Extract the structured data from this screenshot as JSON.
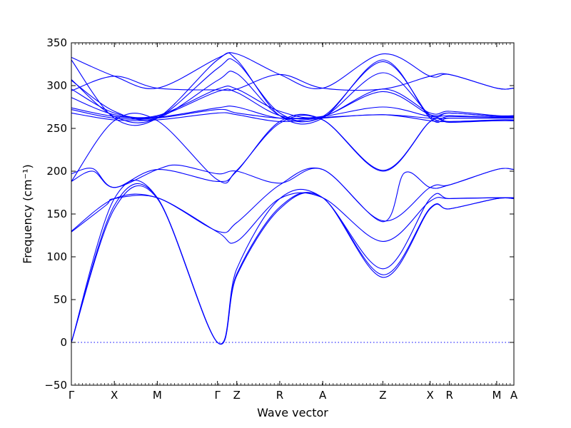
{
  "chart_data": {
    "type": "line",
    "xlabel": "Wave vector",
    "ylabel": "Frequency (cm⁻¹)",
    "ylim": [
      -50,
      350
    ],
    "yticks": [
      -50,
      0,
      50,
      100,
      150,
      200,
      250,
      300,
      350
    ],
    "xlim": [
      0,
      10.3
    ],
    "kpoints": [
      {
        "label": "Γ",
        "x": 0
      },
      {
        "label": "X",
        "x": 1.0
      },
      {
        "label": "M",
        "x": 2.0
      },
      {
        "label": "Γ",
        "x": 3.4
      },
      {
        "label": "Z",
        "x": 3.85
      },
      {
        "label": "R",
        "x": 4.85
      },
      {
        "label": "A",
        "x": 5.85
      },
      {
        "label": "Z",
        "x": 7.25
      },
      {
        "label": "X",
        "x": 8.35
      },
      {
        "label": "R",
        "x": 8.8
      },
      {
        "label": "M",
        "x": 9.9
      },
      {
        "label": "A",
        "x": 10.3
      }
    ],
    "zero_line": {
      "y": 0,
      "style": "dotted"
    },
    "grid": false,
    "line_color": "#0000ff",
    "series": [
      {
        "x": [
          0,
          1.0,
          2.0,
          3.4,
          3.85,
          4.85,
          5.85,
          7.25,
          8.35,
          8.8,
          9.9,
          10.3
        ],
        "values": [
          0,
          156,
          168,
          0,
          78,
          156,
          169,
          76,
          156,
          156,
          168,
          168
        ]
      },
      {
        "x": [
          0,
          1.0,
          2.0,
          3.4,
          3.85,
          4.85,
          5.85,
          7.25,
          8.35,
          8.8,
          9.9,
          10.3
        ],
        "values": [
          0,
          160,
          169,
          0,
          80,
          158,
          169,
          79,
          157,
          156,
          168,
          168
        ]
      },
      {
        "x": [
          0,
          1.0,
          2.0,
          3.4,
          3.85,
          4.85,
          5.85,
          7.25,
          8.35,
          8.8,
          9.9,
          10.3
        ],
        "values": [
          0,
          168,
          169,
          0,
          86,
          168,
          169,
          86,
          168,
          168,
          169,
          169
        ]
      },
      {
        "x": [
          0,
          0.8,
          1.0,
          2.0,
          3.4,
          3.85,
          4.85,
          5.85,
          7.25,
          8.35,
          8.8,
          9.9,
          10.3
        ],
        "values": [
          129,
          160,
          168,
          169,
          129,
          118,
          168,
          169,
          118,
          165,
          168,
          169,
          169
        ]
      },
      {
        "x": [
          0,
          1.0,
          2.0,
          3.4,
          3.85,
          4.85,
          5.85,
          7.25,
          8.35,
          8.8,
          9.9,
          10.3
        ],
        "values": [
          130,
          168,
          169,
          130,
          140,
          184,
          202,
          142,
          181,
          184,
          202,
          202
        ]
      },
      {
        "x": [
          0,
          0.5,
          1.0,
          2.0,
          2.5,
          3.4,
          3.85,
          4.85,
          5.85,
          7.25,
          7.75,
          8.35,
          8.8,
          9.9,
          10.3
        ],
        "values": [
          188,
          200,
          181,
          202,
          207,
          197,
          200,
          186,
          202,
          141,
          198,
          181,
          184,
          202,
          202
        ]
      },
      {
        "x": [
          0,
          0.5,
          1.0,
          2.0,
          3.4,
          3.85,
          4.85,
          5.85,
          7.25,
          8.35,
          8.8,
          9.9,
          10.3
        ],
        "values": [
          197,
          203,
          181,
          202,
          188,
          200,
          258,
          260,
          200,
          258,
          258,
          259,
          259
        ]
      },
      {
        "x": [
          0,
          1.0,
          2.0,
          3.4,
          3.85,
          4.85,
          5.85,
          7.25,
          8.35,
          8.8,
          9.9,
          10.3
        ],
        "values": [
          188,
          259,
          259,
          190,
          201,
          256,
          260,
          201,
          258,
          257,
          259,
          259
        ]
      },
      {
        "x": [
          0,
          1.0,
          2.0,
          3.4,
          3.85,
          4.85,
          5.85,
          7.25,
          8.35,
          8.8,
          9.9,
          10.3
        ],
        "values": [
          268,
          260,
          260,
          268,
          266,
          258,
          262,
          266,
          259,
          258,
          260,
          260
        ]
      },
      {
        "x": [
          0,
          1.0,
          2.0,
          3.4,
          3.85,
          4.85,
          5.85,
          7.25,
          8.35,
          8.8,
          9.9,
          10.3
        ],
        "values": [
          272,
          262,
          262,
          272,
          268,
          262,
          263,
          266,
          262,
          262,
          262,
          262
        ]
      },
      {
        "x": [
          0,
          1.0,
          2.0,
          3.4,
          3.85,
          4.85,
          5.85,
          7.25,
          8.35,
          8.8,
          9.9,
          10.3
        ],
        "values": [
          274,
          264,
          263,
          274,
          275,
          262,
          264,
          275,
          264,
          265,
          263,
          263
        ]
      },
      {
        "x": [
          0,
          1.0,
          2.0,
          3.4,
          3.85,
          4.85,
          5.85,
          7.25,
          8.35,
          8.8,
          9.9,
          10.3
        ],
        "values": [
          286,
          266,
          264,
          293,
          292,
          265,
          264,
          293,
          266,
          268,
          264,
          264
        ]
      },
      {
        "x": [
          0,
          1.0,
          2.0,
          3.4,
          3.85,
          4.85,
          5.85,
          7.25,
          8.35,
          8.8,
          9.9,
          10.3
        ],
        "values": [
          296,
          268,
          265,
          296,
          296,
          270,
          264,
          296,
          268,
          270,
          265,
          265
        ]
      },
      {
        "x": [
          0,
          1.0,
          2.0,
          3.4,
          3.85,
          4.85,
          5.85,
          7.25,
          8.35,
          8.8,
          9.9,
          10.3
        ],
        "values": [
          306,
          270,
          262,
          306,
          314,
          265,
          263,
          315,
          266,
          268,
          264,
          264
        ]
      },
      {
        "x": [
          0,
          1.0,
          2.0,
          3.4,
          3.85,
          4.85,
          5.85,
          7.25,
          8.35,
          8.8,
          9.9,
          10.3
        ],
        "values": [
          307,
          264,
          262,
          320,
          327,
          268,
          264,
          328,
          264,
          264,
          263,
          263
        ]
      },
      {
        "x": [
          0,
          1.0,
          2.0,
          3.4,
          3.85,
          4.85,
          5.85,
          7.25,
          8.35,
          8.8,
          9.9,
          10.3
        ],
        "values": [
          330,
          262,
          262,
          330,
          330,
          265,
          262,
          330,
          262,
          262,
          262,
          262
        ]
      },
      {
        "x": [
          0,
          1.0,
          2.0,
          3.4,
          3.85,
          4.85,
          5.85,
          7.25,
          8.35,
          8.8,
          9.9,
          10.3
        ],
        "values": [
          294,
          311,
          297,
          295,
          296,
          313,
          297,
          296,
          311,
          313,
          297,
          297
        ]
      },
      {
        "x": [
          0,
          1.0,
          2.0,
          3.4,
          3.85,
          4.85,
          5.85,
          7.25,
          8.35,
          8.8,
          9.9,
          10.3
        ],
        "values": [
          333,
          311,
          297,
          332,
          337,
          313,
          297,
          337,
          311,
          313,
          297,
          297
        ]
      }
    ]
  }
}
